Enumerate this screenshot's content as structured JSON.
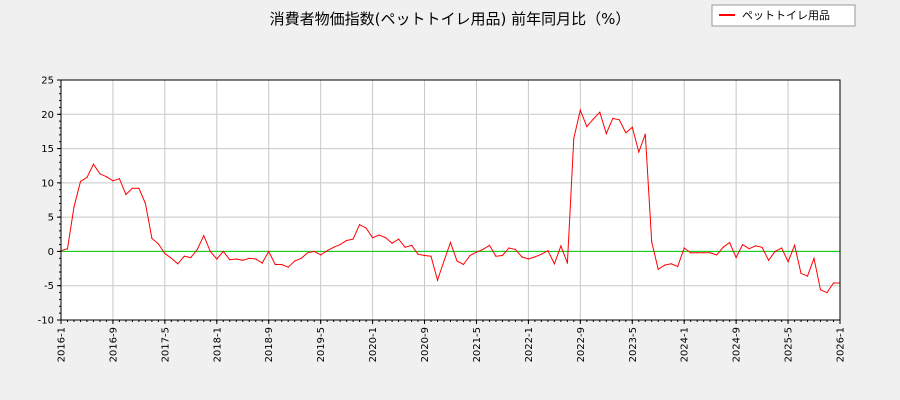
{
  "chart_data": {
    "type": "line",
    "title": "消費者物価指数(ペットトイレ用品) 前年同月比（%）",
    "xlabel": "",
    "ylabel": "",
    "ylim": [
      -10,
      25
    ],
    "yticks": [
      "-10",
      "-5",
      "0",
      "5",
      "10",
      "15",
      "20",
      "25"
    ],
    "xlim": [
      "2016-01",
      "2026-01"
    ],
    "xticks": [
      "2016-1",
      "2016-9",
      "2017-5",
      "2018-1",
      "2018-9",
      "2019-5",
      "2020-1",
      "2020-9",
      "2021-5",
      "2022-1",
      "2022-9",
      "2023-5",
      "2024-1",
      "2024-9",
      "2025-5",
      "2026-1"
    ],
    "grid": true,
    "legend_position": "top-right",
    "reference_line": {
      "y": 0,
      "color": "#00cc00"
    },
    "series": [
      {
        "name": "ペットトイレ用品",
        "color": "#ff0000",
        "x": [
          "2016-01",
          "2016-02",
          "2016-03",
          "2016-04",
          "2016-05",
          "2016-06",
          "2016-07",
          "2016-08",
          "2016-09",
          "2016-10",
          "2016-11",
          "2016-12",
          "2017-01",
          "2017-02",
          "2017-03",
          "2017-04",
          "2017-05",
          "2017-06",
          "2017-07",
          "2017-08",
          "2017-09",
          "2017-10",
          "2017-11",
          "2017-12",
          "2018-01",
          "2018-02",
          "2018-03",
          "2018-04",
          "2018-05",
          "2018-06",
          "2018-07",
          "2018-08",
          "2018-09",
          "2018-10",
          "2018-11",
          "2018-12",
          "2019-01",
          "2019-02",
          "2019-03",
          "2019-04",
          "2019-05",
          "2019-06",
          "2019-07",
          "2019-08",
          "2019-09",
          "2019-10",
          "2019-11",
          "2019-12",
          "2020-01",
          "2020-02",
          "2020-03",
          "2020-04",
          "2020-05",
          "2020-06",
          "2020-07",
          "2020-08",
          "2020-09",
          "2020-10",
          "2020-11",
          "2020-12",
          "2021-01",
          "2021-02",
          "2021-03",
          "2021-04",
          "2021-05",
          "2021-06",
          "2021-07",
          "2021-08",
          "2021-09",
          "2021-10",
          "2021-11",
          "2021-12",
          "2022-01",
          "2022-02",
          "2022-03",
          "2022-04",
          "2022-05",
          "2022-06",
          "2022-07",
          "2022-08",
          "2022-09",
          "2022-10",
          "2022-11",
          "2022-12",
          "2023-01",
          "2023-02",
          "2023-03",
          "2023-04",
          "2023-05",
          "2023-06",
          "2023-07",
          "2023-08",
          "2023-09",
          "2023-10",
          "2023-11",
          "2023-12",
          "2024-01",
          "2024-02",
          "2024-03",
          "2024-04",
          "2024-05",
          "2024-06",
          "2024-07",
          "2024-08",
          "2024-09",
          "2024-10",
          "2024-11",
          "2024-12",
          "2025-01",
          "2025-02",
          "2025-03",
          "2025-04",
          "2025-05",
          "2025-06",
          "2025-07",
          "2025-08",
          "2025-09",
          "2025-10",
          "2025-11",
          "2025-12",
          "2026-01"
        ],
        "values": [
          0.1,
          0.4,
          6.5,
          10.2,
          10.8,
          12.7,
          11.3,
          10.9,
          10.3,
          10.6,
          8.3,
          9.2,
          9.2,
          7.0,
          1.9,
          1.1,
          -0.3,
          -1.0,
          -1.8,
          -0.7,
          -0.9,
          0.3,
          2.3,
          0.0,
          -1.1,
          0.0,
          -1.2,
          -1.1,
          -1.3,
          -1.0,
          -1.1,
          -1.7,
          0.0,
          -1.9,
          -1.9,
          -2.3,
          -1.4,
          -1.0,
          -0.2,
          0.0,
          -0.5,
          0.1,
          0.6,
          1.0,
          1.6,
          1.8,
          3.9,
          3.4,
          2.0,
          2.4,
          2.0,
          1.2,
          1.8,
          0.6,
          0.9,
          -0.4,
          -0.6,
          -0.7,
          -4.2,
          -1.4,
          1.3,
          -1.4,
          -1.9,
          -0.6,
          -0.1,
          0.3,
          0.9,
          -0.7,
          -0.6,
          0.5,
          0.3,
          -0.8,
          -1.1,
          -0.8,
          -0.4,
          0.1,
          -1.8,
          0.8,
          -1.7,
          16.5,
          20.6,
          18.2,
          19.3,
          20.3,
          17.2,
          19.4,
          19.2,
          17.3,
          18.1,
          14.5,
          17.1,
          1.4,
          -2.6,
          -2.0,
          -1.8,
          -2.2,
          0.5,
          -0.2,
          -0.2,
          -0.2,
          -0.2,
          -0.5,
          0.6,
          1.3,
          -0.9,
          1.0,
          0.4,
          0.8,
          0.6,
          -1.3,
          0.0,
          0.5,
          -1.5,
          0.9,
          -3.2,
          -3.6,
          -1.0,
          -5.6,
          -6.0,
          -4.6,
          -4.6
        ]
      }
    ]
  }
}
